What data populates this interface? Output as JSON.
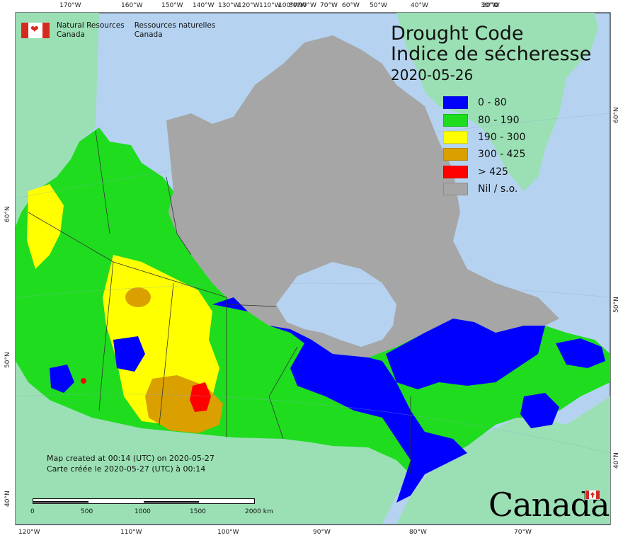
{
  "titles": {
    "english": "Drought Code",
    "french": "Indice de sécheresse",
    "date": "2020-05-26"
  },
  "legend": [
    {
      "label": "0 - 80",
      "color": "#0000ff"
    },
    {
      "label": "80 - 190",
      "color": "#1fdc1f"
    },
    {
      "label": "190 - 300",
      "color": "#ffff00"
    },
    {
      "label": "300 - 425",
      "color": "#d9a000"
    },
    {
      "label": "> 425",
      "color": "#ff0000"
    },
    {
      "label": "Nil / s.o.",
      "color": "#a6a6a6"
    }
  ],
  "department": {
    "en_line1": "Natural Resources",
    "en_line2": "Canada",
    "fr_line1": "Ressources naturelles",
    "fr_line2": "Canada"
  },
  "credits": {
    "en": "Map created at 00:14 (UTC) on 2020-05-27",
    "fr": "Carte créée le 2020-05-27 (UTC) à 00:14"
  },
  "scale": {
    "labels": [
      "0",
      "500",
      "1000",
      "1500",
      "2000 km"
    ]
  },
  "graticule": {
    "top": [
      "170°W",
      "160°W",
      "150°W",
      "140°W",
      "130°W",
      "120°W",
      "110°W",
      "100°W",
      "90°W",
      "80°W",
      "70°W",
      "60°W",
      "50°W",
      "40°W",
      "30°W",
      "20°W"
    ],
    "bottom": [
      "120°W",
      "110°W",
      "100°W",
      "90°W",
      "80°W",
      "70°W"
    ],
    "left": [
      "60°N",
      "50°N",
      "40°N"
    ],
    "right": [
      "60°N",
      "50°N",
      "40°N"
    ]
  },
  "wordmark": "Canada",
  "colors": {
    "ocean": "#b5d3f0",
    "land_outside": "#9be0b4",
    "nodata": "#a6a6a6"
  }
}
